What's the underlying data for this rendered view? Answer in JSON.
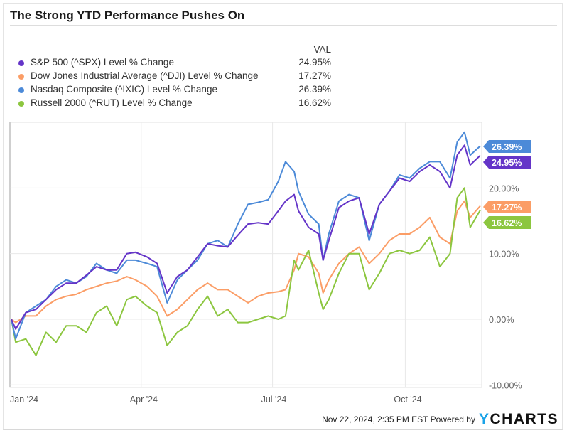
{
  "chart_data": {
    "type": "line",
    "title": "The Strong YTD Performance Pushes On",
    "legend_header": "VAL",
    "legend_placement": "top-left",
    "grid": true,
    "ylim": [
      -10.4,
      30
    ],
    "y_ticks": [
      -10,
      0,
      10,
      20
    ],
    "y_tick_labels": [
      "-10.00%",
      "0.00%",
      "10.00%",
      "20.00%"
    ],
    "x_ticks": [
      "2024-01-01",
      "2024-04-01",
      "2024-07-01",
      "2024-10-01"
    ],
    "x_tick_labels": [
      "Jan '24",
      "Apr '24",
      "Jul '24",
      "Oct '24"
    ],
    "xlim": [
      "2024-01-01",
      "2024-11-22"
    ],
    "dates": [
      "2024-01-02",
      "2024-01-05",
      "2024-01-12",
      "2024-01-19",
      "2024-01-26",
      "2024-02-02",
      "2024-02-09",
      "2024-02-16",
      "2024-02-23",
      "2024-03-01",
      "2024-03-08",
      "2024-03-15",
      "2024-03-22",
      "2024-03-28",
      "2024-04-05",
      "2024-04-12",
      "2024-04-19",
      "2024-04-26",
      "2024-05-03",
      "2024-05-10",
      "2024-05-17",
      "2024-05-24",
      "2024-05-31",
      "2024-06-07",
      "2024-06-14",
      "2024-06-21",
      "2024-06-28",
      "2024-07-05",
      "2024-07-10",
      "2024-07-16",
      "2024-07-19",
      "2024-07-26",
      "2024-08-02",
      "2024-08-05",
      "2024-08-09",
      "2024-08-16",
      "2024-08-23",
      "2024-08-30",
      "2024-09-06",
      "2024-09-13",
      "2024-09-20",
      "2024-09-27",
      "2024-10-04",
      "2024-10-11",
      "2024-10-18",
      "2024-10-25",
      "2024-11-01",
      "2024-11-06",
      "2024-11-11",
      "2024-11-15",
      "2024-11-22"
    ],
    "series": [
      {
        "name": "S&P 500 (^SPX) Level % Change",
        "value_label": "24.95%",
        "color": "#6434c8",
        "values": [
          0,
          -1.5,
          1,
          1.5,
          3,
          4.5,
          5.5,
          5.5,
          6.7,
          8,
          7.5,
          7.5,
          10,
          10.2,
          9.5,
          8.5,
          4,
          6.5,
          7.5,
          9.5,
          11.5,
          11.2,
          11,
          12.8,
          14.5,
          14.7,
          14.5,
          16.5,
          18,
          19,
          16.5,
          14,
          13,
          9,
          12,
          17,
          18,
          18.5,
          13,
          17.5,
          19.5,
          21.5,
          21,
          22.5,
          23.5,
          22.5,
          20,
          25,
          26.5,
          23.5,
          24.95
        ]
      },
      {
        "name": "Dow Jones Industrial Average (^DJI) Level % Change",
        "value_label": "17.27%",
        "color": "#fb9d66",
        "values": [
          0,
          -0.5,
          0.5,
          0.5,
          2,
          3,
          3.5,
          3.8,
          4.5,
          5,
          5.5,
          5.8,
          6.5,
          6,
          5,
          3.5,
          0.5,
          1.5,
          3,
          4.5,
          5.5,
          4.5,
          4.5,
          3.5,
          2.5,
          3.5,
          4,
          4.2,
          4.5,
          7.5,
          10,
          9.5,
          7,
          4,
          6,
          8.5,
          10,
          11,
          8.5,
          10,
          12,
          13,
          13,
          14,
          15.5,
          12.5,
          11.5,
          16.5,
          18,
          15.5,
          17.27
        ]
      },
      {
        "name": "Nasdaq Composite (^IXIC) Level % Change",
        "value_label": "26.39%",
        "color": "#4c8ad8",
        "values": [
          0,
          -3,
          1,
          2,
          3,
          5,
          6,
          5.5,
          6.5,
          8.5,
          7.5,
          7,
          9,
          9,
          8.5,
          8,
          2.5,
          6,
          7.5,
          9,
          11.5,
          12,
          11,
          14.5,
          17.5,
          17.8,
          18.2,
          21,
          24,
          22.5,
          19.5,
          16,
          14.5,
          9,
          13,
          18,
          19,
          18.5,
          12,
          17.5,
          19.5,
          22,
          21.5,
          23,
          24,
          24,
          21.5,
          27,
          28.5,
          25,
          26.39
        ]
      },
      {
        "name": "Russell 2000 (^RUT) Level % Change",
        "value_label": "16.62%",
        "color": "#8cc63f",
        "values": [
          0,
          -3.5,
          -3,
          -5.5,
          -2,
          -3.5,
          -1,
          -1,
          -2,
          1,
          2,
          -1,
          3,
          3.5,
          2,
          1,
          -4,
          -2,
          -1,
          1.5,
          3.5,
          0.5,
          1.5,
          -0.5,
          -0.5,
          0,
          0.5,
          0,
          0.5,
          9,
          7.5,
          10.5,
          4,
          1.5,
          3,
          7,
          10,
          10,
          4.5,
          7,
          10,
          10.5,
          10,
          10.5,
          12.5,
          8,
          10,
          18.5,
          20,
          14,
          16.62
        ]
      }
    ]
  },
  "footer": {
    "timestamp": "Nov 22, 2024, 2:35 PM EST Powered by",
    "logo_y": "Y",
    "logo_rest": "CHARTS"
  }
}
